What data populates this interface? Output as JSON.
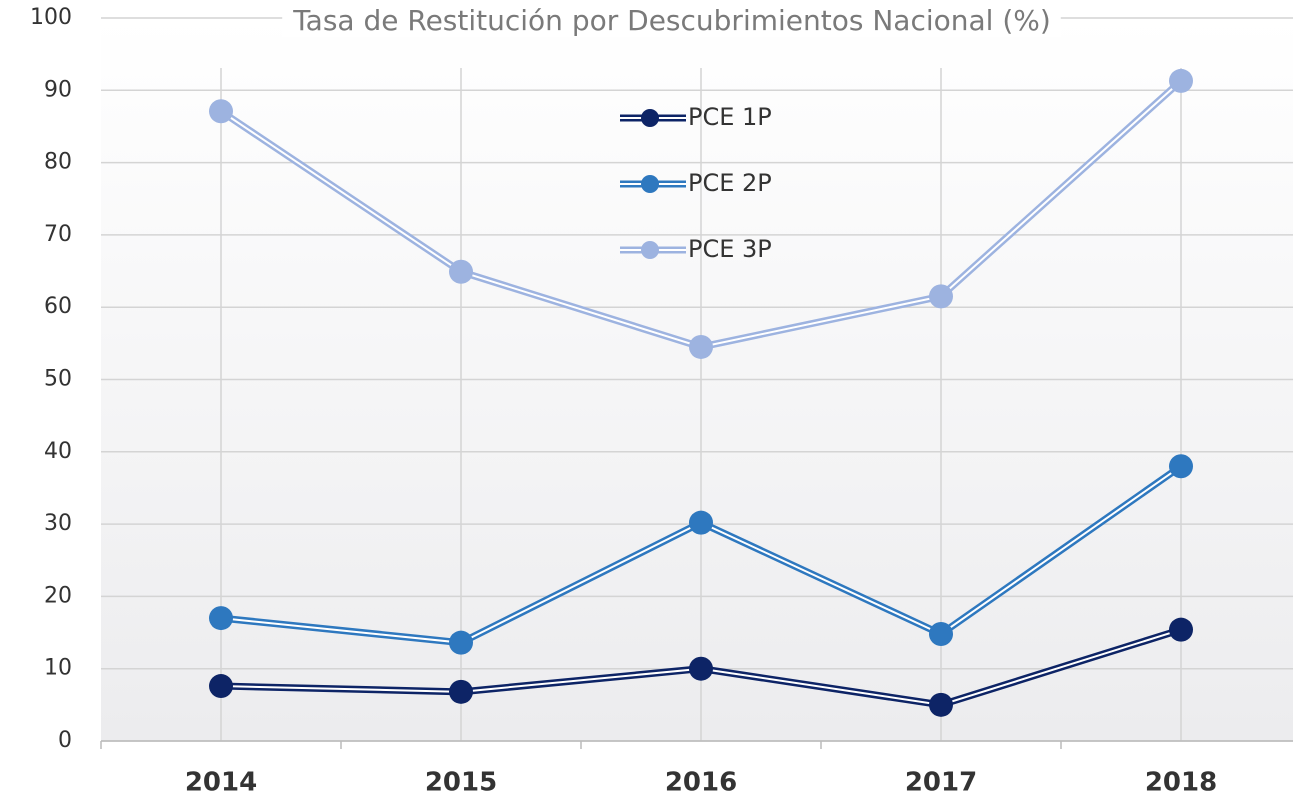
{
  "chart_data": {
    "type": "line",
    "title": "Tasa de Restitución por Descubrimientos Nacional (%)",
    "categories": [
      "2014",
      "2015",
      "2016",
      "2017",
      "2018"
    ],
    "series": [
      {
        "name": "PCE 1P",
        "color": "#0d2466",
        "values": [
          7.6,
          6.8,
          10.0,
          5.0,
          15.4
        ]
      },
      {
        "name": "PCE 2P",
        "color": "#2e78bf",
        "values": [
          17.0,
          13.6,
          30.2,
          14.8,
          38.0
        ]
      },
      {
        "name": "PCE 3P",
        "color": "#9db3e0",
        "values": [
          87.1,
          64.9,
          54.5,
          61.5,
          91.3
        ]
      }
    ],
    "ylim": [
      0,
      100
    ],
    "yticks": [
      0,
      10,
      20,
      30,
      40,
      50,
      60,
      70,
      80,
      90,
      100
    ],
    "grid": true,
    "legend_position": "top-center"
  }
}
